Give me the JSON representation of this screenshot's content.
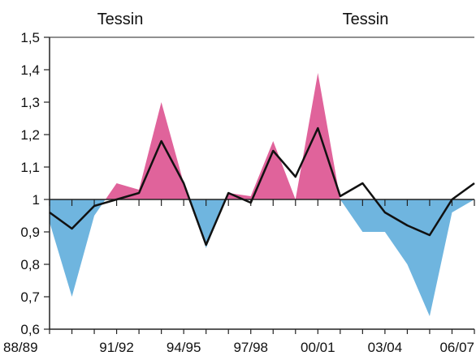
{
  "chart_data": {
    "type": "area",
    "titles": [
      "Tessin",
      "Tessin"
    ],
    "xlabel": "",
    "ylabel": "",
    "x_tick_labels": [
      "88/89",
      "91/92",
      "94/95",
      "97/98",
      "00/01",
      "03/04",
      "06/07"
    ],
    "y_tick_labels": [
      "0,6",
      "0,7",
      "0,8",
      "0,9",
      "1",
      "1,1",
      "1,2",
      "1,3",
      "1,4",
      "1,5"
    ],
    "ylim": [
      0.6,
      1.5
    ],
    "baseline": 1.0,
    "x": [
      "88/89",
      "89/90",
      "90/91",
      "91/92",
      "92/93",
      "93/94",
      "94/95",
      "95/96",
      "96/97",
      "97/98",
      "98/99",
      "99/00",
      "00/01",
      "01/02",
      "02/03",
      "03/04",
      "04/05",
      "05/06",
      "06/07",
      "07/08"
    ],
    "series": [
      {
        "values": [
          0.93,
          0.7,
          0.95,
          1.05,
          1.03,
          1.3,
          1.05,
          0.85,
          1.02,
          1.01,
          1.18,
          1.0,
          1.39,
          1.0,
          0.9,
          0.9,
          0.8,
          0.64,
          0.96,
          1.0
        ]
      },
      {
        "values": [
          0.96,
          0.91,
          0.98,
          1.0,
          1.02,
          1.18,
          1.05,
          0.86,
          1.02,
          0.99,
          1.15,
          1.07,
          1.22,
          1.01,
          1.05,
          0.96,
          0.92,
          0.89,
          1.0,
          1.05
        ]
      }
    ],
    "colors": {
      "above": "#e0639b",
      "below": "#6fb5df",
      "line": "#111111",
      "axis": "#222222"
    },
    "grid": false
  }
}
